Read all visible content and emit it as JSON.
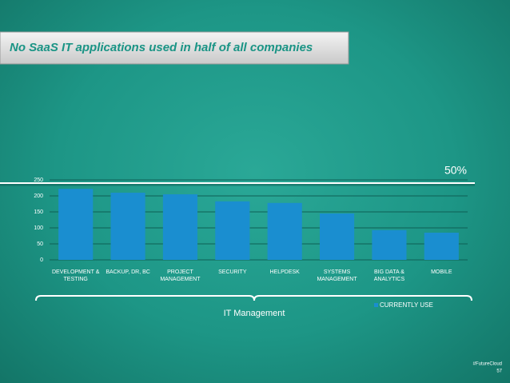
{
  "chart_data": {
    "type": "bar",
    "title": "No SaaS IT applications used in half of all companies",
    "annotation": "50%",
    "x_label": "IT Management",
    "categories": [
      "DEVELOPMENT & TESTING",
      "BACKUP, DR, BC",
      "PROJECT MANAGEMENT",
      "SECURITY",
      "HELPDESK",
      "SYSTEMS MANAGEMENT",
      "BIG DATA & ANALYTICS",
      "MOBILE"
    ],
    "series": [
      {
        "name": "CURRENTLY USE",
        "color": "#1a8ed0",
        "values": [
          222,
          210,
          205,
          183,
          178,
          145,
          93,
          85
        ]
      }
    ],
    "ylim": [
      0,
      250
    ],
    "yticks": [
      0,
      50,
      100,
      150,
      200,
      250
    ],
    "grid": true
  },
  "footer": {
    "hashtag": "#FutureCloud",
    "page": "57"
  }
}
